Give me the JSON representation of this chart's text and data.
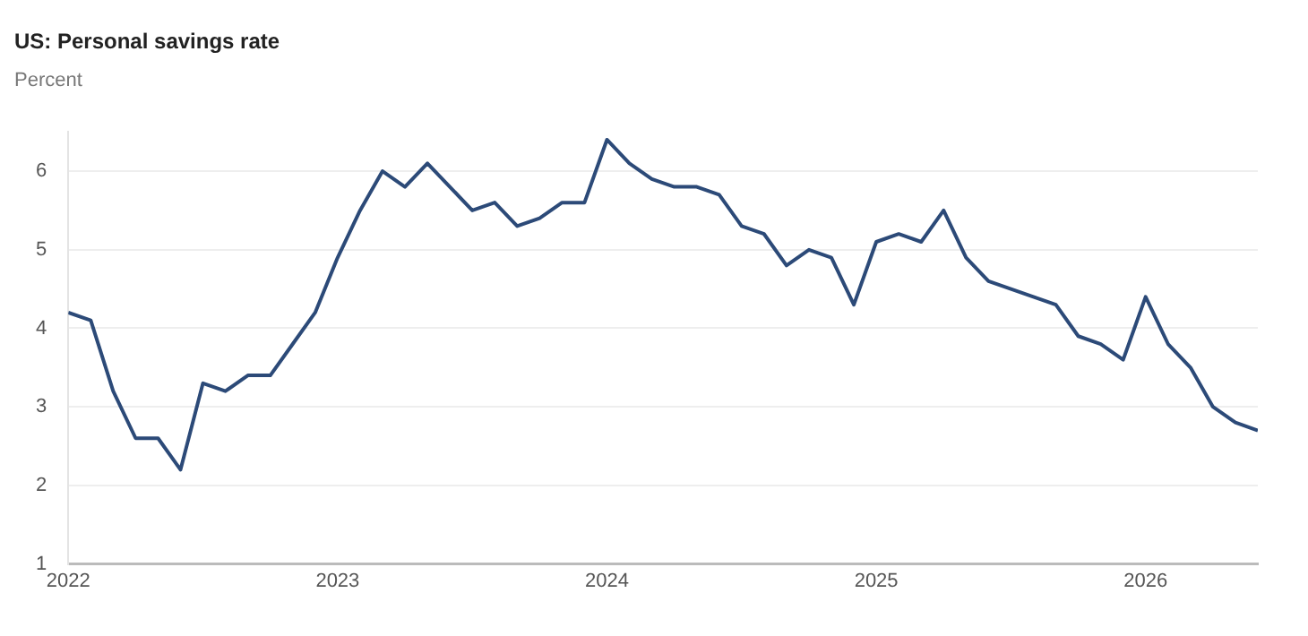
{
  "chart_data": {
    "type": "line",
    "title": "US: Personal savings rate",
    "ylabel": "Percent",
    "x": [
      "2022-01",
      "2022-02",
      "2022-03",
      "2022-04",
      "2022-05",
      "2022-06",
      "2022-07",
      "2022-08",
      "2022-09",
      "2022-10",
      "2022-11",
      "2022-12",
      "2023-01",
      "2023-02",
      "2023-03",
      "2023-04",
      "2023-05",
      "2023-06",
      "2023-07",
      "2023-08",
      "2023-09",
      "2023-10",
      "2023-11",
      "2023-12",
      "2024-01",
      "2024-02",
      "2024-03",
      "2024-04",
      "2024-05",
      "2024-06",
      "2024-07",
      "2024-08",
      "2024-09",
      "2024-10",
      "2024-11",
      "2024-12",
      "2025-01",
      "2025-02",
      "2025-03",
      "2025-04",
      "2025-05",
      "2025-06",
      "2025-07",
      "2025-08",
      "2025-09",
      "2025-10",
      "2025-11",
      "2025-12",
      "2026-01",
      "2026-02",
      "2026-03",
      "2026-04",
      "2026-05",
      "2026-06"
    ],
    "series": [
      {
        "color": "#2c4a78",
        "values": [
          4.2,
          4.1,
          3.2,
          2.6,
          2.6,
          2.2,
          3.3,
          3.2,
          3.4,
          3.4,
          3.8,
          4.2,
          4.9,
          5.5,
          6.0,
          5.8,
          6.1,
          5.8,
          5.5,
          5.6,
          5.3,
          5.4,
          5.6,
          5.6,
          6.4,
          6.1,
          5.9,
          5.8,
          5.8,
          5.7,
          5.3,
          5.2,
          4.8,
          5.0,
          4.9,
          4.3,
          5.1,
          5.2,
          5.1,
          5.5,
          4.9,
          4.6,
          4.5,
          4.4,
          4.3,
          3.9,
          3.8,
          3.6,
          4.4,
          3.8,
          3.5,
          3.0,
          2.8,
          2.7
        ]
      }
    ],
    "xlim": [
      "2022-01",
      "2026-06"
    ],
    "xticks": [
      {
        "value": "2022-01",
        "label": "2022"
      },
      {
        "value": "2023-01",
        "label": "2023"
      },
      {
        "value": "2024-01",
        "label": "2024"
      },
      {
        "value": "2025-01",
        "label": "2025"
      },
      {
        "value": "2026-01",
        "label": "2026"
      }
    ],
    "ylim": [
      1,
      6.5
    ],
    "yticks": [
      1,
      2,
      3,
      4,
      5,
      6
    ],
    "grid": "y",
    "legend": false,
    "marker": "none",
    "line_style": "solid"
  }
}
